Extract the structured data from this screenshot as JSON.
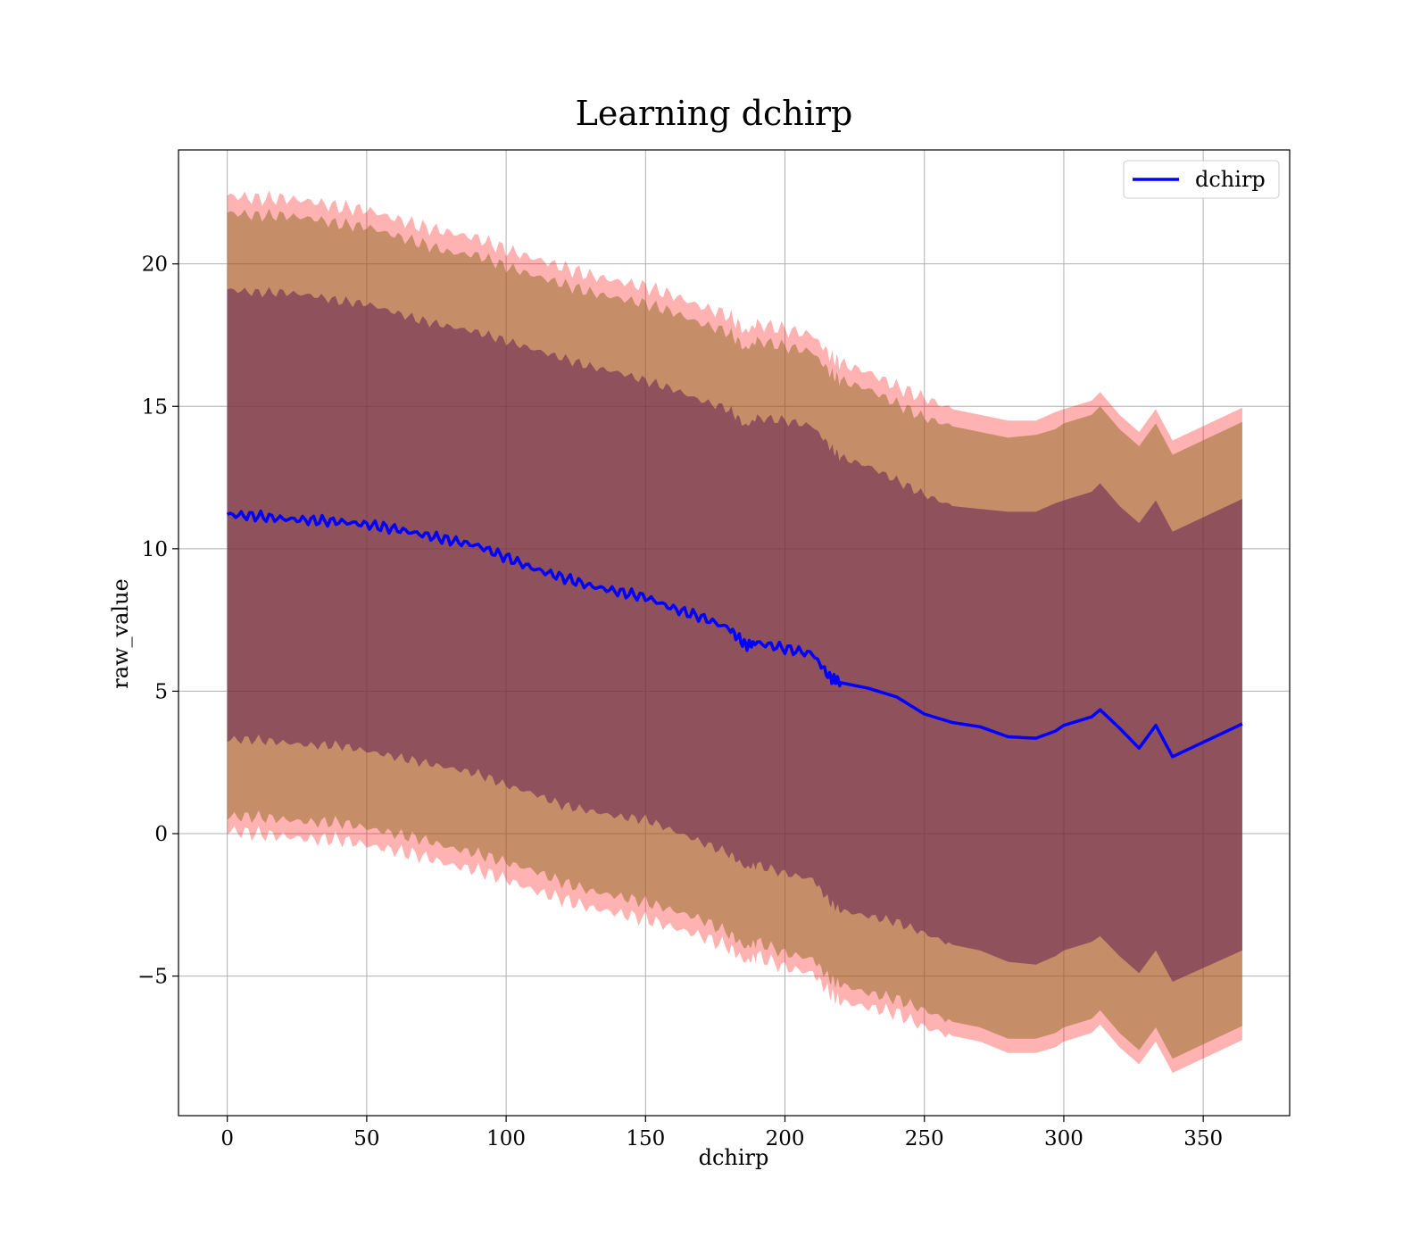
{
  "chart_data": {
    "type": "line",
    "title": "Learning dchirp",
    "xlabel": "dchirp",
    "ylabel": "raw_value",
    "xlim": [
      -17.5,
      381
    ],
    "ylim": [
      -9.9,
      24
    ],
    "x_ticks": [
      0,
      50,
      100,
      150,
      200,
      250,
      300,
      350
    ],
    "x_tick_labels": [
      "0",
      "50",
      "100",
      "150",
      "200",
      "250",
      "300",
      "350"
    ],
    "y_ticks": [
      -5,
      0,
      5,
      10,
      15,
      20
    ],
    "y_tick_labels": [
      "−5",
      "0",
      "5",
      "10",
      "15",
      "20"
    ],
    "grid": true,
    "legend": {
      "placement": "top-right",
      "entries": [
        "dchirp"
      ]
    },
    "colors": {
      "line": "#0000ff",
      "band_outer": "#ff0000",
      "band_middle": "#8c6a1e",
      "band_inner": "#5a1550",
      "grid": "#b0b0b0"
    },
    "series": [
      {
        "name": "dchirp",
        "x": [
          0,
          10,
          20,
          30,
          40,
          50,
          60,
          70,
          80,
          90,
          100,
          110,
          120,
          130,
          140,
          150,
          160,
          170,
          180,
          186,
          190,
          200,
          210,
          216,
          220,
          230,
          240,
          250,
          260,
          270,
          280,
          290,
          297,
          300,
          310,
          313,
          320,
          327,
          333,
          339,
          364
        ],
        "mean": [
          11.2,
          11.15,
          11.05,
          11.0,
          10.95,
          10.85,
          10.7,
          10.5,
          10.3,
          10.1,
          9.7,
          9.3,
          9.0,
          8.7,
          8.5,
          8.3,
          7.9,
          7.6,
          7.2,
          6.6,
          6.7,
          6.5,
          6.3,
          5.5,
          5.3,
          5.1,
          4.8,
          4.2,
          3.9,
          3.75,
          3.4,
          3.35,
          3.6,
          3.8,
          4.1,
          4.35,
          3.7,
          3.0,
          3.8,
          2.7,
          3.85
        ],
        "inner_upper": [
          19.1,
          19.0,
          19.0,
          18.9,
          18.7,
          18.6,
          18.3,
          18.0,
          17.8,
          17.6,
          17.3,
          17.0,
          16.7,
          16.4,
          16.2,
          15.9,
          15.6,
          15.2,
          14.9,
          14.3,
          14.6,
          14.5,
          14.3,
          13.6,
          13.2,
          12.9,
          12.4,
          11.9,
          11.5,
          11.4,
          11.3,
          11.3,
          11.6,
          11.7,
          12.0,
          12.3,
          11.5,
          10.9,
          11.7,
          10.6,
          11.75
        ],
        "inner_lower": [
          3.3,
          3.3,
          3.2,
          3.1,
          3.1,
          2.9,
          2.7,
          2.5,
          2.3,
          2.1,
          1.7,
          1.4,
          1.0,
          0.8,
          0.6,
          0.5,
          0.1,
          -0.3,
          -0.7,
          -1.2,
          -1.1,
          -1.4,
          -1.6,
          -2.4,
          -2.7,
          -2.9,
          -3.1,
          -3.5,
          -3.9,
          -4.1,
          -4.5,
          -4.6,
          -4.3,
          -4.1,
          -3.8,
          -3.6,
          -4.3,
          -4.9,
          -4.1,
          -5.2,
          -4.1
        ],
        "middle_upper": [
          21.8,
          21.7,
          21.7,
          21.6,
          21.4,
          21.3,
          21.0,
          20.7,
          20.4,
          20.3,
          19.9,
          19.6,
          19.3,
          19.0,
          18.8,
          18.6,
          18.3,
          17.9,
          17.6,
          17.0,
          17.3,
          17.1,
          16.9,
          16.2,
          15.9,
          15.6,
          15.1,
          14.6,
          14.3,
          14.1,
          13.9,
          14.0,
          14.2,
          14.4,
          14.7,
          15.0,
          14.2,
          13.6,
          14.4,
          13.3,
          14.45
        ],
        "middle_lower": [
          0.6,
          0.6,
          0.5,
          0.4,
          0.4,
          0.2,
          0.0,
          -0.2,
          -0.5,
          -0.7,
          -1.0,
          -1.3,
          -1.7,
          -2.0,
          -2.2,
          -2.4,
          -2.7,
          -3.0,
          -3.5,
          -4.0,
          -3.8,
          -4.2,
          -4.4,
          -5.1,
          -5.3,
          -5.6,
          -5.8,
          -6.2,
          -6.6,
          -6.8,
          -7.2,
          -7.2,
          -7.0,
          -6.8,
          -6.5,
          -6.2,
          -7.0,
          -7.6,
          -6.8,
          -7.9,
          -6.75
        ],
        "outer_upper": [
          22.4,
          22.3,
          22.3,
          22.2,
          22.0,
          21.9,
          21.6,
          21.3,
          21.1,
          20.9,
          20.5,
          20.2,
          19.9,
          19.6,
          19.4,
          19.2,
          18.9,
          18.5,
          18.2,
          17.6,
          17.9,
          17.7,
          17.5,
          16.8,
          16.5,
          16.2,
          15.7,
          15.3,
          14.9,
          14.7,
          14.5,
          14.5,
          14.8,
          14.9,
          15.2,
          15.5,
          14.7,
          14.1,
          14.9,
          13.8,
          14.95
        ],
        "outer_lower": [
          0.1,
          0.0,
          -0.1,
          -0.2,
          -0.2,
          -0.4,
          -0.6,
          -0.8,
          -1.1,
          -1.3,
          -1.6,
          -2.0,
          -2.3,
          -2.6,
          -2.8,
          -3.0,
          -3.3,
          -3.6,
          -4.0,
          -4.5,
          -4.3,
          -4.7,
          -4.9,
          -5.6,
          -5.9,
          -6.1,
          -6.3,
          -6.8,
          -7.1,
          -7.3,
          -7.7,
          -7.7,
          -7.5,
          -7.3,
          -7.0,
          -6.7,
          -7.5,
          -8.1,
          -7.3,
          -8.4,
          -7.25
        ]
      }
    ]
  }
}
